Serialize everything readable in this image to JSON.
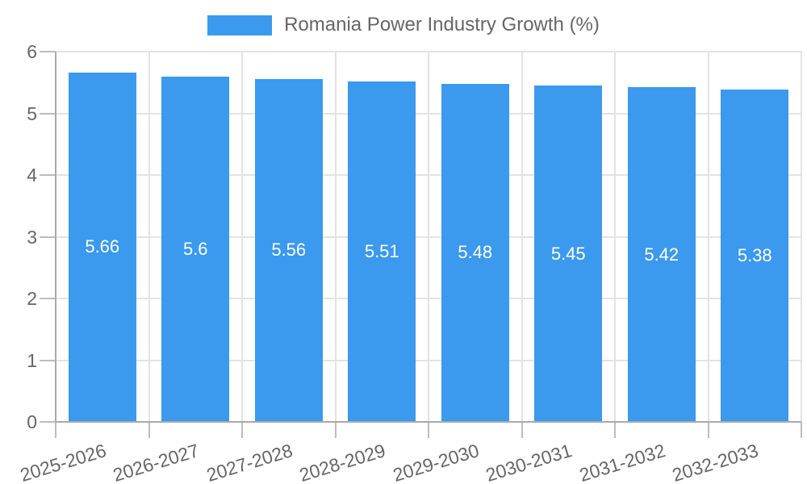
{
  "legend": {
    "label": "Romania Power Industry Growth (%)"
  },
  "chart_data": {
    "type": "bar",
    "title": "Romania Power Industry Growth (%)",
    "categories": [
      "2025-2026",
      "2026-2027",
      "2027-2028",
      "2028-2029",
      "2029-2030",
      "2030-2031",
      "2031-2032",
      "2032-2033"
    ],
    "values": [
      5.66,
      5.6,
      5.56,
      5.51,
      5.48,
      5.45,
      5.42,
      5.38
    ],
    "value_labels": [
      "5.66",
      "5.6",
      "5.56",
      "5.51",
      "5.48",
      "5.45",
      "5.42",
      "5.38"
    ],
    "xlabel": "",
    "ylabel": "",
    "ylim": [
      0,
      6
    ],
    "y_ticks": [
      0,
      1,
      2,
      3,
      4,
      5,
      6
    ],
    "grid": true,
    "legend_position": "top",
    "colors": {
      "bar": "#3B99EE",
      "grid": "#E3E3E3",
      "axis": "#A9A9A9",
      "tick": "#BDBDBD",
      "text": "#666666",
      "value_label": "#FFFFFF"
    }
  }
}
